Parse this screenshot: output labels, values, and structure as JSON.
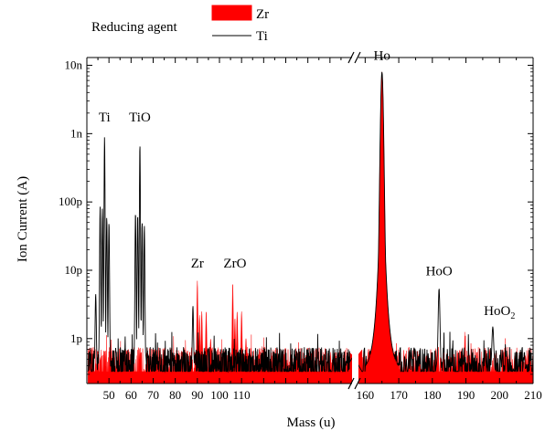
{
  "chart_data": {
    "type": "line",
    "xlabel": "Mass (u)",
    "ylabel": "Ion Current (A)",
    "yscale": "log",
    "ylim": [
      2.2e-13,
      1.3e-08
    ],
    "x_segments": [
      {
        "range": [
          40,
          160
        ],
        "ticks": [
          50,
          60,
          70,
          80,
          90,
          100,
          110
        ]
      },
      {
        "range": [
          158,
          210
        ],
        "ticks": [
          160,
          170,
          180,
          190,
          200,
          210
        ]
      }
    ],
    "y_ticks": [
      {
        "value": 1e-12,
        "label": "1p"
      },
      {
        "value": 1e-11,
        "label": "10p"
      },
      {
        "value": 1e-10,
        "label": "100p"
      },
      {
        "value": 1e-09,
        "label": "1n"
      },
      {
        "value": 1e-08,
        "label": "10n"
      }
    ],
    "legend": {
      "title": "Reducing agent",
      "placement": "top-left",
      "entries": [
        {
          "name": "Zr",
          "color": "#ff0000",
          "style": "filled"
        },
        {
          "name": "Ti",
          "color": "#000000",
          "style": "line"
        }
      ]
    },
    "series": [
      {
        "name": "Zr",
        "color": "#ff0000",
        "noise_floor": 3.3e-13,
        "peaks": [
          {
            "x": 90,
            "y": 7e-12
          },
          {
            "x": 91,
            "y": 2.2e-12
          },
          {
            "x": 92,
            "y": 2.5e-12
          },
          {
            "x": 94,
            "y": 2.5e-12
          },
          {
            "x": 96,
            "y": 1e-12
          },
          {
            "x": 106,
            "y": 6.5e-12
          },
          {
            "x": 107,
            "y": 2e-12
          },
          {
            "x": 108,
            "y": 2.5e-12
          },
          {
            "x": 110,
            "y": 2.5e-12
          },
          {
            "x": 112,
            "y": 1e-12
          },
          {
            "x": 165,
            "y": 8e-09
          }
        ]
      },
      {
        "name": "Ti",
        "color": "#000000",
        "noise_floor": 3.3e-13,
        "peaks": [
          {
            "x": 44,
            "y": 4.5e-12
          },
          {
            "x": 46,
            "y": 8.5e-11
          },
          {
            "x": 47,
            "y": 8e-11
          },
          {
            "x": 48,
            "y": 9e-10
          },
          {
            "x": 49,
            "y": 6e-11
          },
          {
            "x": 50,
            "y": 5e-11
          },
          {
            "x": 62,
            "y": 7e-11
          },
          {
            "x": 63,
            "y": 6.5e-11
          },
          {
            "x": 64,
            "y": 7e-10
          },
          {
            "x": 65,
            "y": 5e-11
          },
          {
            "x": 66,
            "y": 4.5e-11
          },
          {
            "x": 88,
            "y": 3e-12
          },
          {
            "x": 165,
            "y": 8e-09
          },
          {
            "x": 182,
            "y": 5.5e-12
          },
          {
            "x": 198,
            "y": 1.5e-12
          }
        ]
      }
    ],
    "annotations": [
      {
        "text": "Ti",
        "x": 48,
        "y": 1.5e-09
      },
      {
        "text": "TiO",
        "x": 64,
        "y": 1.5e-09
      },
      {
        "text": "Zr",
        "x": 90,
        "y": 1.1e-11
      },
      {
        "text": "ZrO",
        "x": 107,
        "y": 1.1e-11
      },
      {
        "text": "Ho",
        "x": 165,
        "y": 1.2e-08
      },
      {
        "text": "HoO",
        "x": 182,
        "y": 8.5e-12
      },
      {
        "text": "HoO",
        "sub": "2",
        "x": 200,
        "y": 2.2e-12
      }
    ],
    "axis_break": {
      "between": [
        160,
        158
      ]
    }
  }
}
